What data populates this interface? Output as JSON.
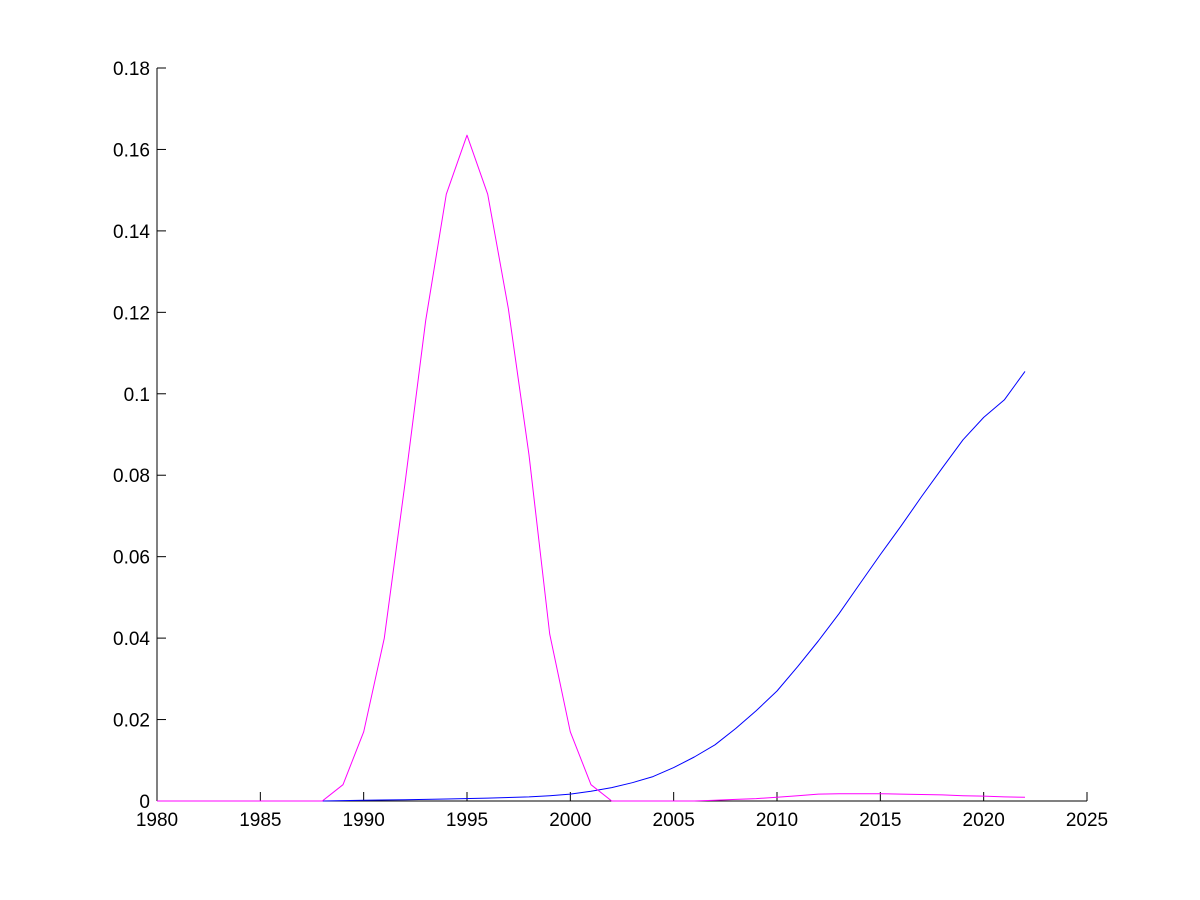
{
  "chart_data": {
    "type": "line",
    "title": "",
    "xlabel": "",
    "ylabel": "",
    "xlim": [
      1980,
      2025
    ],
    "ylim": [
      0,
      0.18
    ],
    "xticks": [
      1980,
      1985,
      1990,
      1995,
      2000,
      2005,
      2010,
      2015,
      2020,
      2025
    ],
    "xtick_labels": [
      "1980",
      "1985",
      "1990",
      "1995",
      "2000",
      "2005",
      "2010",
      "2015",
      "2020",
      "2025"
    ],
    "yticks": [
      0,
      0.02,
      0.04,
      0.06,
      0.08,
      0.1,
      0.12,
      0.14,
      0.16,
      0.18
    ],
    "ytick_labels": [
      "0",
      "0.02",
      "0.04",
      "0.06",
      "0.08",
      "0.1",
      "0.12",
      "0.14",
      "0.16",
      "0.18"
    ],
    "grid": false,
    "series": [
      {
        "color": "#0000ff",
        "x": [
          1980,
          1985,
          1988,
          1990,
          1992,
          1994,
          1996,
          1998,
          1999,
          2000,
          2001,
          2002,
          2003,
          2004,
          2005,
          2006,
          2007,
          2008,
          2009,
          2010,
          2011,
          2012,
          2013,
          2014,
          2015,
          2016,
          2017,
          2018,
          2019,
          2020,
          2021,
          2022
        ],
        "y": [
          0,
          0,
          0,
          0.0002,
          0.0003,
          0.0005,
          0.0007,
          0.001,
          0.0013,
          0.0017,
          0.0024,
          0.0033,
          0.0045,
          0.006,
          0.0082,
          0.0108,
          0.0138,
          0.0178,
          0.0222,
          0.027,
          0.033,
          0.0393,
          0.046,
          0.0533,
          0.0605,
          0.0675,
          0.0748,
          0.0818,
          0.0887,
          0.0942,
          0.0985,
          0.1055
        ]
      },
      {
        "color": "#ff00ff",
        "x": [
          1980,
          1985,
          1988,
          1989,
          1990,
          1991,
          1992,
          1993,
          1994,
          1995,
          1996,
          1997,
          1998,
          1999,
          2000,
          2001,
          2002,
          2003,
          2004,
          2005,
          2006,
          2007,
          2008,
          2009,
          2010,
          2011,
          2012,
          2013,
          2014,
          2015,
          2016,
          2017,
          2018,
          2019,
          2020,
          2021,
          2022
        ],
        "y": [
          0,
          0,
          0,
          0.004,
          0.017,
          0.04,
          0.078,
          0.118,
          0.149,
          0.1635,
          0.149,
          0.121,
          0.085,
          0.041,
          0.017,
          0.004,
          0,
          0,
          0,
          0,
          0,
          0.0002,
          0.0004,
          0.0006,
          0.0009,
          0.0013,
          0.0017,
          0.0018,
          0.0018,
          0.0018,
          0.0017,
          0.0016,
          0.0015,
          0.0013,
          0.0012,
          0.001,
          0.0009
        ]
      }
    ]
  }
}
